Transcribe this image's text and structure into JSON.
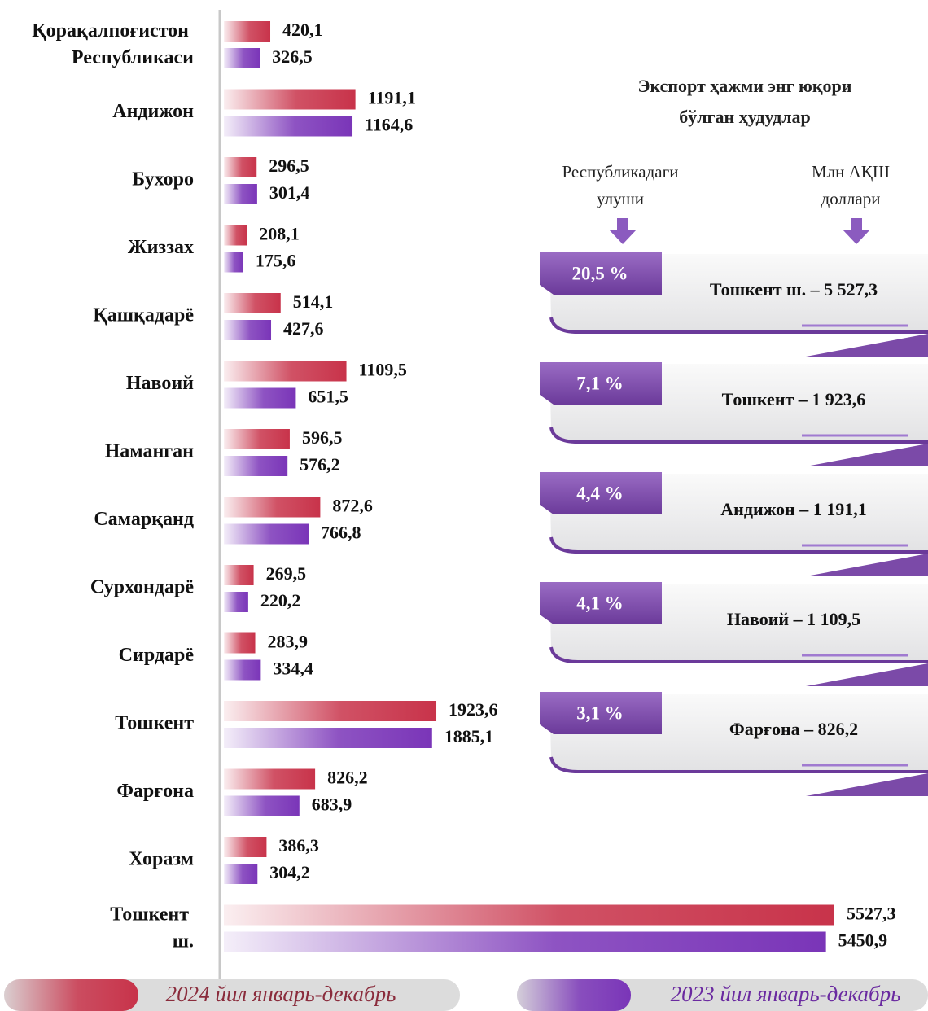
{
  "chart_data": {
    "type": "bar",
    "orientation": "horizontal",
    "categories": [
      "Қорақалпоғистон Республикаси",
      "Андижон",
      "Бухоро",
      "Жиззах",
      "Қашқадарё",
      "Навоий",
      "Наманган",
      "Самарқанд",
      "Сурхондарё",
      "Сирдарё",
      "Тошкент",
      "Фарғона",
      "Хоразм",
      "Тошкент ш."
    ],
    "series": [
      {
        "name": "2024 йил январь-декабрь",
        "color": "#c8334a",
        "values": [
          420.1,
          1191.1,
          296.5,
          208.1,
          514.1,
          1109.5,
          596.5,
          872.6,
          269.5,
          283.9,
          1923.6,
          826.2,
          386.3,
          5527.3
        ],
        "value_labels": [
          "420,1",
          "1191,1",
          "296,5",
          "208,1",
          "514,1",
          "1109,5",
          "596,5",
          "872,6",
          "269,5",
          "283,9",
          "1923,6",
          "826,2",
          "386,3",
          "5527,3"
        ]
      },
      {
        "name": "2023 йил январь-декабрь",
        "color": "#7a35b8",
        "values": [
          326.5,
          1164.6,
          301.4,
          175.6,
          427.6,
          651.5,
          576.2,
          766.8,
          220.2,
          334.4,
          1885.1,
          683.9,
          304.2,
          5450.9
        ],
        "value_labels": [
          "326,5",
          "1164,6",
          "301,4",
          "175,6",
          "427,6",
          "651,5",
          "576,2",
          "766,8",
          "220,2",
          "334,4",
          "1885,1",
          "683,9",
          "304,2",
          "5450,9"
        ]
      }
    ]
  },
  "panel": {
    "title": [
      "Экспорт ҳажми энг юқори",
      "бўлган ҳудудлар"
    ],
    "share_header": [
      "Республикадаги",
      "улуши"
    ],
    "value_header": [
      "Млн АҚШ",
      "доллари"
    ],
    "items": [
      {
        "share": "20,5 %",
        "label": "Тошкент ш. – 5 527,3"
      },
      {
        "share": "7,1 %",
        "label": "Тошкент – 1 923,6"
      },
      {
        "share": "4,4 %",
        "label": "Андижон – 1 191,1"
      },
      {
        "share": "4,1 %",
        "label": "Навоий – 1 109,5"
      },
      {
        "share": "3,1 %",
        "label": "Фарғона – 826,2"
      }
    ]
  }
}
